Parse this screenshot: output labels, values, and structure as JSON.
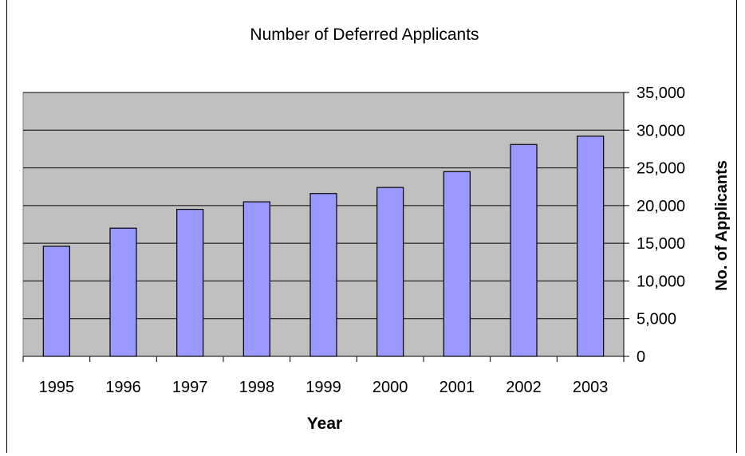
{
  "chart_data": {
    "type": "bar",
    "title": "Number of Deferred Applicants",
    "xlabel": "Year",
    "ylabel": "No. of Applicants",
    "categories": [
      "1995",
      "1996",
      "1997",
      "1998",
      "1999",
      "2000",
      "2001",
      "2002",
      "2003"
    ],
    "series": [
      {
        "values": [
          14600,
          17000,
          19500,
          20500,
          21600,
          22400,
          24500,
          28100,
          29200
        ]
      }
    ],
    "ylim": [
      0,
      35000
    ],
    "yticks": [
      0,
      5000,
      10000,
      15000,
      20000,
      25000,
      30000,
      35000
    ],
    "ytick_labels": [
      "0",
      "5,000",
      "10,000",
      "15,000",
      "20,000",
      "25,000",
      "30,000",
      "35,000"
    ],
    "y_axis_side": "right",
    "grid": true,
    "legend": false,
    "colors": {
      "bar_fill": "#9999ff",
      "plot_background": "#c0c0c0",
      "gridline": "#000000"
    }
  }
}
